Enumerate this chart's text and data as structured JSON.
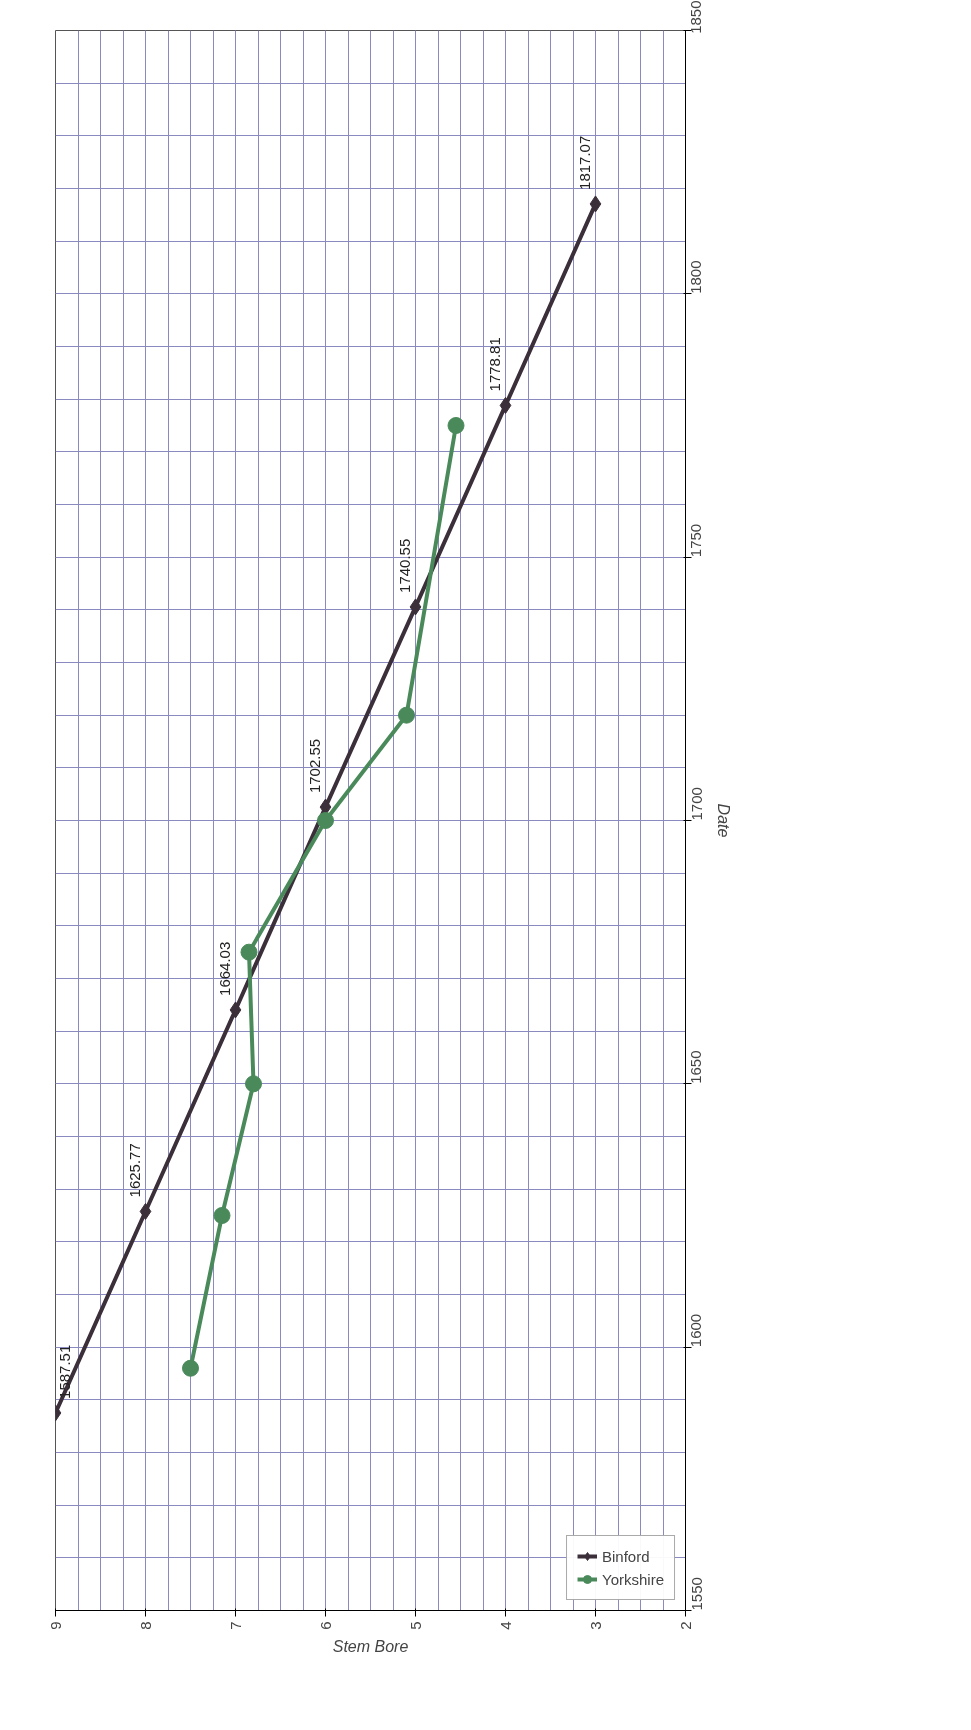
{
  "chart_data": {
    "type": "line",
    "xlabel": "Stem Bore",
    "ylabel": "Date",
    "xlim": [
      9,
      2
    ],
    "xticks": [
      9,
      8,
      7,
      6,
      5,
      4,
      3,
      2
    ],
    "ylim": [
      1550,
      1850
    ],
    "yticks": [
      1550,
      1600,
      1650,
      1700,
      1750,
      1800,
      1850
    ],
    "grid": true,
    "legend": "bottom right",
    "series": [
      {
        "name": "Binford",
        "color": "#3b2f3a",
        "marker": "diamond",
        "x": [
          9,
          8,
          7,
          6,
          5,
          4,
          3
        ],
        "values": [
          1587.51,
          1625.77,
          1664.03,
          1702.55,
          1740.55,
          1778.81,
          1817.07
        ],
        "value_labels": [
          "1587.51",
          "1625.77",
          "1664.03",
          "1702.55",
          "1740.55",
          "1778.81",
          "1817.07"
        ]
      },
      {
        "name": "Yorkshire",
        "color": "#4a8a5a",
        "marker": "circle",
        "x": [
          7.5,
          7.15,
          6.8,
          6.85,
          6.0,
          5.1,
          4.55
        ],
        "values": [
          1596,
          1625,
          1650,
          1675,
          1700,
          1720,
          1775
        ]
      }
    ]
  }
}
